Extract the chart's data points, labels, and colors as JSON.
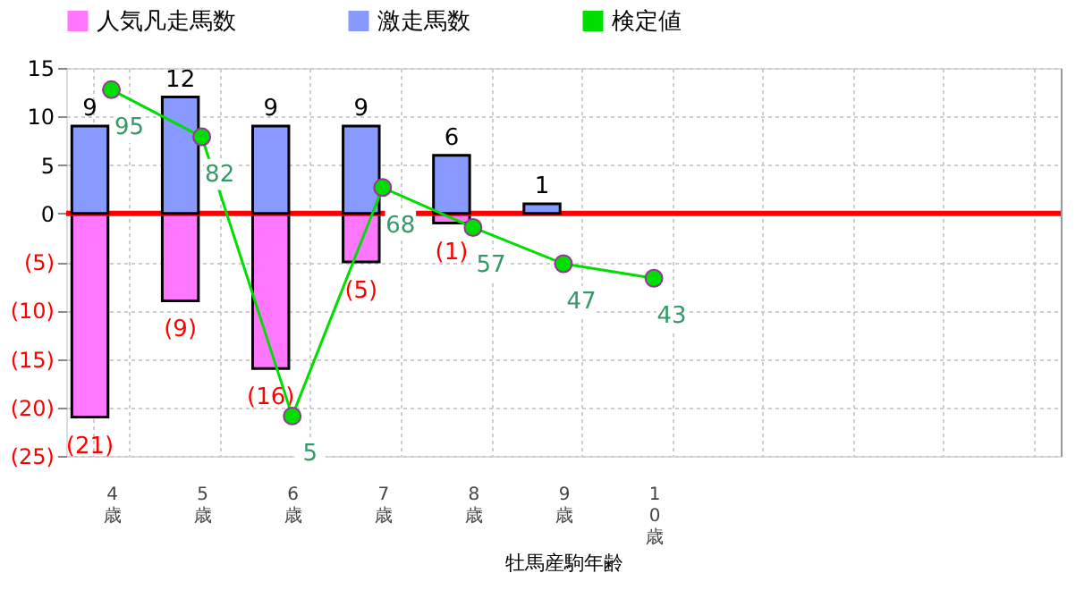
{
  "chart_data": {
    "type": "bar",
    "xlabel": "牡馬産駒年齢",
    "categories": [
      "4歳",
      "5歳",
      "6歳",
      "7歳",
      "8歳",
      "9歳",
      "10歳",
      null,
      null,
      null,
      null
    ],
    "stacked": true,
    "series": [
      {
        "name": "人気凡走馬数",
        "color": "#ff77ff",
        "values": [
          -21,
          -9,
          -16,
          -5,
          -1,
          null,
          null,
          null,
          null,
          null,
          null
        ],
        "value_labels": [
          "(21)",
          "(9)",
          "(16)",
          "(5)",
          "(1)",
          null,
          null,
          null,
          null,
          null,
          null
        ]
      },
      {
        "name": "激走馬数",
        "color": "#8899ff",
        "values": [
          9,
          12,
          9,
          9,
          6,
          1,
          null,
          null,
          null,
          null,
          null
        ],
        "value_labels": [
          "9",
          "12",
          "9",
          "9",
          "6",
          "1",
          null,
          null,
          null,
          null,
          null
        ]
      },
      {
        "name": "検定値",
        "type": "line",
        "axis": "y2",
        "color": "#00dd00",
        "marker": "circle",
        "values": [
          95,
          82,
          5,
          68,
          57,
          47,
          43,
          null,
          null,
          null,
          null
        ],
        "value_labels": [
          "95",
          "82",
          "5",
          "68",
          "57",
          "47",
          "43",
          null,
          null,
          null,
          null
        ]
      }
    ],
    "ylim": [
      -25,
      15
    ],
    "yticks": [
      {
        "value": -25,
        "label": "(25)"
      },
      {
        "value": -20,
        "label": "(20)"
      },
      {
        "value": -15,
        "label": "(15)"
      },
      {
        "value": -10,
        "label": "(10)"
      },
      {
        "value": -5,
        "label": "(5)"
      },
      0,
      5,
      10,
      15
    ],
    "y2lim": [
      -6,
      101
    ],
    "tick_labels": "xy",
    "ref_lines": [
      {
        "axis": "y",
        "value": 0,
        "color": "#ff0000"
      }
    ],
    "grid": true,
    "legend": "top"
  }
}
